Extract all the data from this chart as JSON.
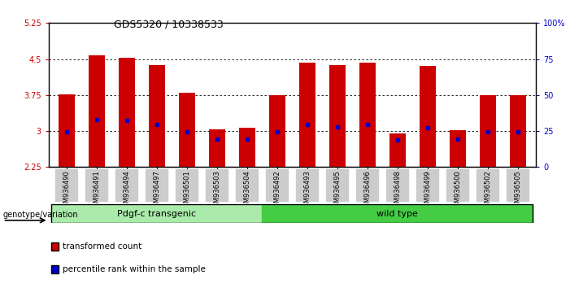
{
  "title": "GDS5320 / 10338533",
  "samples": [
    "GSM936490",
    "GSM936491",
    "GSM936494",
    "GSM936497",
    "GSM936501",
    "GSM936503",
    "GSM936504",
    "GSM936492",
    "GSM936493",
    "GSM936495",
    "GSM936496",
    "GSM936498",
    "GSM936499",
    "GSM936500",
    "GSM936502",
    "GSM936505"
  ],
  "bar_tops": [
    3.76,
    4.57,
    4.52,
    4.37,
    3.79,
    3.04,
    3.07,
    3.75,
    4.42,
    4.37,
    4.42,
    2.95,
    4.35,
    3.02,
    3.75,
    3.75
  ],
  "blue_marks": [
    2.99,
    3.24,
    3.22,
    3.14,
    2.99,
    2.84,
    2.84,
    2.99,
    3.14,
    3.09,
    3.14,
    2.82,
    3.07,
    2.84,
    2.99,
    2.99
  ],
  "bar_bottom": 2.25,
  "ylim_left": [
    2.25,
    5.25
  ],
  "ylim_right": [
    0,
    100
  ],
  "yticks_left": [
    2.25,
    3.0,
    3.75,
    4.5,
    5.25
  ],
  "ytick_labels_left": [
    "2.25",
    "3",
    "3.75",
    "4.5",
    "5.25"
  ],
  "yticks_right": [
    0,
    25,
    50,
    75,
    100
  ],
  "ytick_labels_right": [
    "0",
    "25",
    "50",
    "75",
    "100%"
  ],
  "group1_label": "Pdgf-c transgenic",
  "group2_label": "wild type",
  "group1_count": 7,
  "group2_count": 9,
  "bar_color": "#cc0000",
  "blue_color": "#0000cc",
  "group1_bg": "#aaeaaa",
  "group2_bg": "#44cc44",
  "xlabel": "genotype/variation",
  "legend_red": "transformed count",
  "legend_blue": "percentile rank within the sample",
  "dotted_grid_values": [
    3.0,
    3.75,
    4.5
  ],
  "bar_width": 0.55,
  "tick_label_bg": "#cccccc"
}
